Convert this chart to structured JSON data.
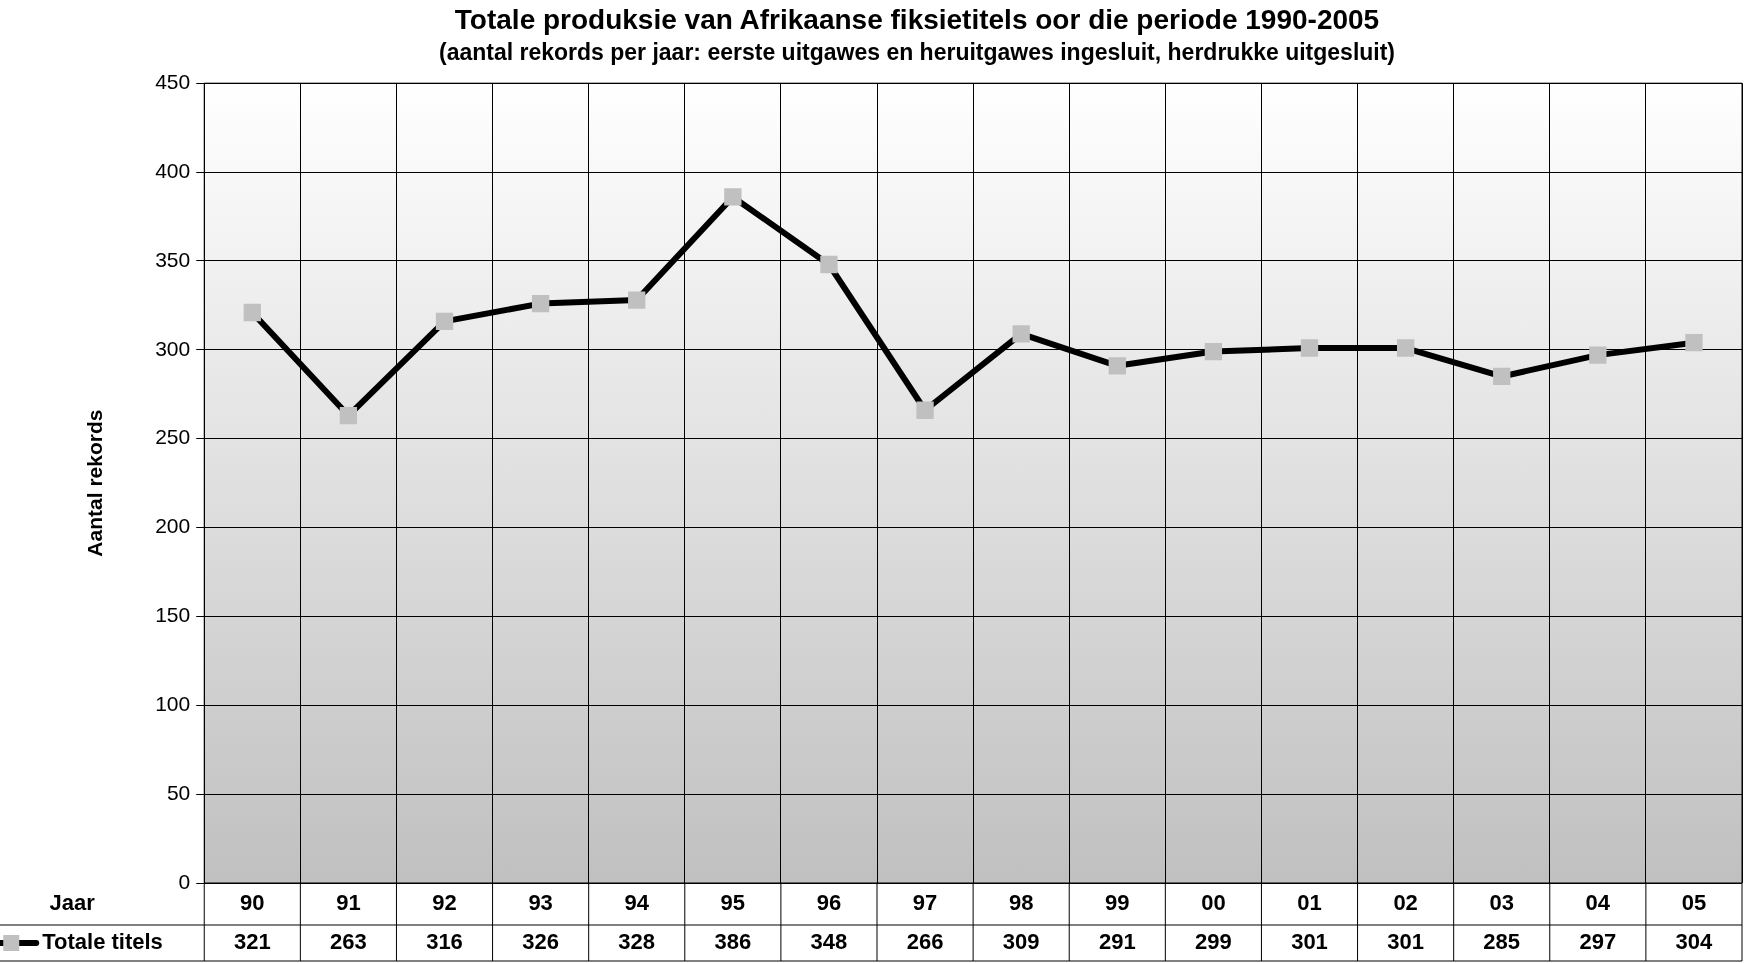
{
  "chart_data": {
    "type": "line",
    "title": "Totale produksie van Afrikaanse fiksietitels oor die periode 1990-2005",
    "subtitle": "(aantal rekords per jaar: eerste uitgawes en heruitgawes ingesluit, herdrukke uitgesluit)",
    "xlabel": "Jaar",
    "ylabel": "Aantal rekords",
    "categories": [
      "90",
      "91",
      "92",
      "93",
      "94",
      "95",
      "96",
      "97",
      "98",
      "99",
      "00",
      "01",
      "02",
      "03",
      "04",
      "05"
    ],
    "series": [
      {
        "name": "Totale titels",
        "color": "#000000",
        "values": [
          321,
          263,
          316,
          326,
          328,
          386,
          348,
          266,
          309,
          291,
          299,
          301,
          301,
          285,
          297,
          304
        ]
      }
    ],
    "ylim": [
      0,
      450
    ],
    "yticks": [
      0,
      50,
      100,
      150,
      200,
      250,
      300,
      350,
      400,
      450
    ],
    "grid": true,
    "legend": "bottom left",
    "marker": "square",
    "line_style": "solid",
    "data_labels": true
  }
}
